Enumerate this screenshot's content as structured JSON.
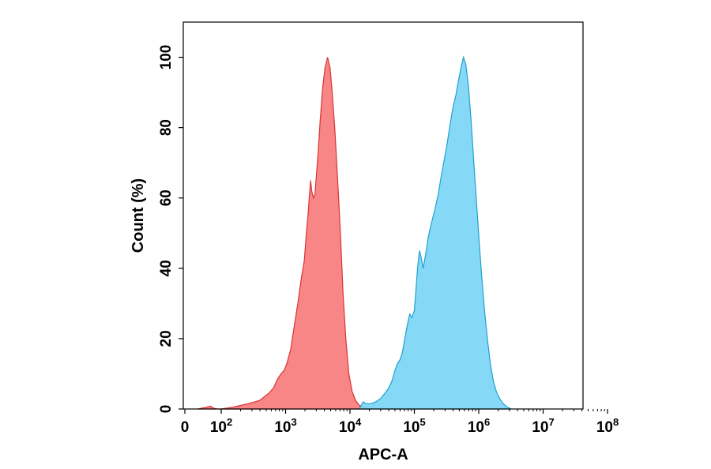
{
  "chart_data": {
    "type": "area",
    "xscale": "log",
    "xlabel": "APC-A",
    "ylabel": "Count (%)",
    "ylim": [
      0,
      110
    ],
    "xlim": [
      0,
      100000000
    ],
    "grid": false,
    "x_ticks": [
      {
        "value": 0,
        "base": "0",
        "exp": ""
      },
      {
        "value": 100,
        "base": "10",
        "exp": "2"
      },
      {
        "value": 1000,
        "base": "10",
        "exp": "3"
      },
      {
        "value": 10000,
        "base": "10",
        "exp": "4"
      },
      {
        "value": 100000,
        "base": "10",
        "exp": "5"
      },
      {
        "value": 1000000,
        "base": "10",
        "exp": "6"
      },
      {
        "value": 10000000,
        "base": "10",
        "exp": "7"
      },
      {
        "value": 100000000,
        "base": "10",
        "exp": "8"
      }
    ],
    "y_ticks": [
      {
        "value": 0,
        "label": "0"
      },
      {
        "value": 20,
        "label": "20"
      },
      {
        "value": 40,
        "label": "40"
      },
      {
        "value": 60,
        "label": "60"
      },
      {
        "value": 80,
        "label": "80"
      },
      {
        "value": 100,
        "label": "100"
      }
    ],
    "series": [
      {
        "fill": "#f98080",
        "stroke": "#d83434",
        "points": [
          [
            5,
            0
          ],
          [
            15,
            0.5
          ],
          [
            25,
            0.8
          ],
          [
            40,
            0.2
          ],
          [
            60,
            0
          ],
          [
            100,
            0
          ],
          [
            150,
            0.5
          ],
          [
            200,
            1
          ],
          [
            260,
            1.5
          ],
          [
            330,
            2
          ],
          [
            400,
            2.5
          ],
          [
            470,
            3.5
          ],
          [
            550,
            4.5
          ],
          [
            650,
            6
          ],
          [
            750,
            8.5
          ],
          [
            850,
            10
          ],
          [
            950,
            11
          ],
          [
            1050,
            13
          ],
          [
            1200,
            17
          ],
          [
            1350,
            23
          ],
          [
            1550,
            30
          ],
          [
            1750,
            37
          ],
          [
            1950,
            42
          ],
          [
            2100,
            50
          ],
          [
            2250,
            56
          ],
          [
            2350,
            61
          ],
          [
            2450,
            65
          ],
          [
            2550,
            62
          ],
          [
            2700,
            60
          ],
          [
            2850,
            61
          ],
          [
            3000,
            66
          ],
          [
            3200,
            73
          ],
          [
            3450,
            82
          ],
          [
            3750,
            91
          ],
          [
            4100,
            97
          ],
          [
            4500,
            100
          ],
          [
            4900,
            97
          ],
          [
            5300,
            90
          ],
          [
            5800,
            80
          ],
          [
            6400,
            66
          ],
          [
            7100,
            50
          ],
          [
            7800,
            33
          ],
          [
            8600,
            20
          ],
          [
            9600,
            10
          ],
          [
            10800,
            5
          ],
          [
            12200,
            2.5
          ],
          [
            14000,
            1
          ],
          [
            17000,
            0.5
          ],
          [
            20000,
            0
          ]
        ]
      },
      {
        "fill": "#80d7f6",
        "stroke": "#1fa0cf",
        "points": [
          [
            14000,
            0
          ],
          [
            16000,
            2
          ],
          [
            18000,
            1.5
          ],
          [
            21000,
            1.5
          ],
          [
            25000,
            2
          ],
          [
            30000,
            3
          ],
          [
            35000,
            4.5
          ],
          [
            40000,
            6
          ],
          [
            45000,
            8
          ],
          [
            50000,
            11
          ],
          [
            55000,
            13
          ],
          [
            60000,
            14
          ],
          [
            65000,
            16
          ],
          [
            71000,
            20
          ],
          [
            78000,
            24
          ],
          [
            85000,
            27
          ],
          [
            92000,
            26
          ],
          [
            100000,
            28
          ],
          [
            106000,
            34
          ],
          [
            112000,
            40
          ],
          [
            120000,
            45
          ],
          [
            128000,
            43
          ],
          [
            137000,
            40
          ],
          [
            150000,
            44
          ],
          [
            165000,
            49
          ],
          [
            185000,
            53
          ],
          [
            210000,
            57
          ],
          [
            235000,
            61
          ],
          [
            255000,
            65
          ],
          [
            285000,
            70
          ],
          [
            320000,
            75
          ],
          [
            360000,
            81
          ],
          [
            400000,
            86
          ],
          [
            440000,
            89
          ],
          [
            480000,
            93
          ],
          [
            530000,
            97
          ],
          [
            580000,
            100
          ],
          [
            630000,
            98
          ],
          [
            690000,
            92
          ],
          [
            760000,
            82
          ],
          [
            840000,
            70
          ],
          [
            930000,
            58
          ],
          [
            1020000,
            47
          ],
          [
            1120000,
            37
          ],
          [
            1230000,
            28
          ],
          [
            1360000,
            20
          ],
          [
            1510000,
            13
          ],
          [
            1680000,
            8
          ],
          [
            1870000,
            5
          ],
          [
            2100000,
            3
          ],
          [
            2400000,
            1.5
          ],
          [
            2800000,
            0.5
          ],
          [
            3200000,
            0
          ]
        ]
      }
    ]
  }
}
